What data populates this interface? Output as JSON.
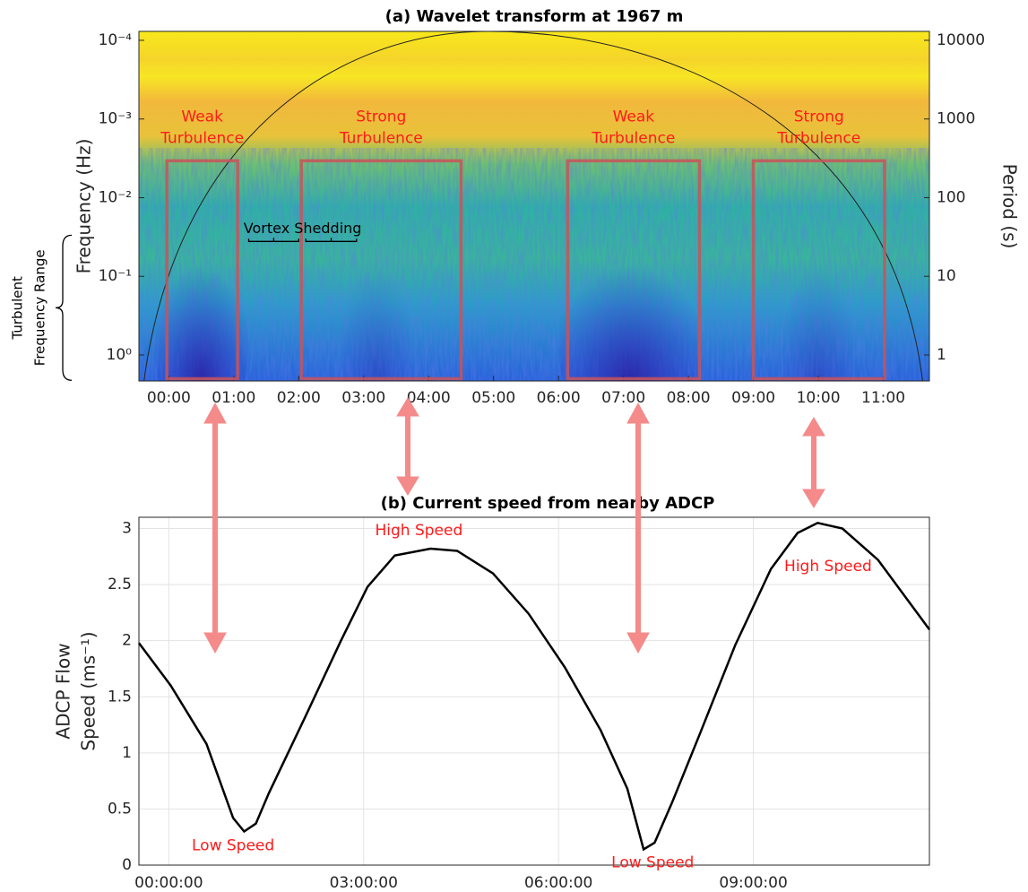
{
  "chart_data": [
    {
      "type": "wavelet",
      "title": "(a) Wavelet transform at 1967 m",
      "ylabel": "Frequency (Hz)",
      "y2label": "Period (s)",
      "log_scale": true,
      "xlim": [
        -0.46,
        11.71
      ],
      "xticks": [
        {
          "value": 0,
          "label": "00:00"
        },
        {
          "value": 1,
          "label": "01:00"
        },
        {
          "value": 2,
          "label": "02:00"
        },
        {
          "value": 3,
          "label": "03:00"
        },
        {
          "value": 4,
          "label": "04:00"
        },
        {
          "value": 5,
          "label": "05:00"
        },
        {
          "value": 6,
          "label": "06:00"
        },
        {
          "value": 7,
          "label": "07:00"
        },
        {
          "value": 8,
          "label": "08:00"
        },
        {
          "value": 9,
          "label": "09:00"
        },
        {
          "value": 10,
          "label": "10:00"
        },
        {
          "value": 11,
          "label": "11:00"
        }
      ],
      "ylim": [
        2.14,
        7.7e-05
      ],
      "yticks": [
        {
          "value": 0.0001,
          "label": "10⁻⁴"
        },
        {
          "value": 0.001,
          "label": "10⁻³"
        },
        {
          "value": 0.01,
          "label": "10⁻²"
        },
        {
          "value": 0.1,
          "label": "10⁻¹"
        },
        {
          "value": 1,
          "label": "10⁰"
        }
      ],
      "y2lim": [
        0.467,
        12987
      ],
      "y2ticks": [
        10000,
        1000,
        100,
        10,
        1
      ],
      "regions": [
        {
          "lines": [
            "Weak",
            "Turbulence"
          ],
          "x": [
            -0.03,
            1.06
          ],
          "y": [
            2.0,
            0.0034
          ]
        },
        {
          "lines": [
            "Strong",
            "Turbulence"
          ],
          "x": [
            2.04,
            4.5
          ],
          "y": [
            2.0,
            0.0034
          ]
        },
        {
          "lines": [
            "Weak",
            "Turbulence"
          ],
          "x": [
            6.14,
            8.17
          ],
          "y": [
            2.0,
            0.0034
          ]
        },
        {
          "lines": [
            "Strong",
            "Turbulence"
          ],
          "x": [
            9.0,
            11.02
          ],
          "y": [
            2.0,
            0.0034
          ]
        }
      ],
      "region_color": "#c8545a",
      "label_color": "#ff1a1a",
      "vortex": {
        "text": "Vortex Shedding",
        "x": [
          1.23,
          2.0,
          2.11,
          2.89
        ],
        "y": 0.036
      },
      "range_label": {
        "lines": [
          "Turbulent",
          "Frequency Range"
        ],
        "y": [
          0.03,
          2.1
        ]
      }
    },
    {
      "type": "line",
      "title": "(b) Current speed from nearby ADCP",
      "ylabel": [
        "ADCP Flow",
        "Speed (ms⁻¹)"
      ],
      "color": "#000000",
      "grid": true,
      "x": [
        -0.46,
        0.03,
        0.58,
        0.99,
        1.16,
        1.34,
        1.54,
        2.1,
        2.65,
        3.06,
        3.48,
        4.03,
        4.44,
        4.99,
        5.54,
        6.1,
        6.65,
        7.06,
        7.31,
        7.48,
        7.75,
        8.17,
        8.72,
        9.27,
        9.68,
        9.99,
        10.37,
        10.92,
        11.71
      ],
      "values": [
        1.98,
        1.6,
        1.08,
        0.42,
        0.3,
        0.37,
        0.64,
        1.32,
        2.0,
        2.48,
        2.76,
        2.82,
        2.8,
        2.6,
        2.24,
        1.76,
        1.2,
        0.68,
        0.14,
        0.2,
        0.56,
        1.16,
        1.96,
        2.64,
        2.96,
        3.05,
        3.0,
        2.72,
        2.1
      ],
      "xlim": [
        -0.46,
        11.71
      ],
      "xticks": [
        {
          "value": 0,
          "label": "00:00:00"
        },
        {
          "value": 3,
          "label": "03:00:00"
        },
        {
          "value": 6,
          "label": "06:00:00"
        },
        {
          "value": 9,
          "label": "09:00:00"
        }
      ],
      "ylim": [
        0,
        3.1
      ],
      "yticks": [
        0,
        0.5,
        1,
        1.5,
        2,
        2.5,
        3
      ],
      "annotations": [
        {
          "text": "High Speed",
          "x": 3.85,
          "y": 2.98
        },
        {
          "text": "High Speed",
          "x": 10.15,
          "y": 2.66
        },
        {
          "text": "Low Speed",
          "x": 0.99,
          "y": 0.17
        },
        {
          "text": "Low Speed",
          "x": 7.45,
          "y": 0.02
        }
      ],
      "label_color": "#ff1a1a"
    }
  ]
}
